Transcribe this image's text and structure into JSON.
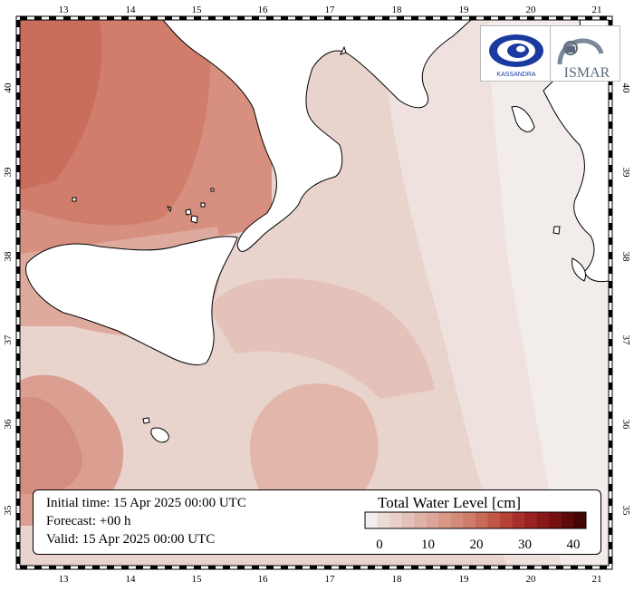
{
  "map": {
    "lon_ticks": [
      "13",
      "14",
      "15",
      "16",
      "17",
      "18",
      "19",
      "20",
      "21"
    ],
    "lat_ticks": [
      "35",
      "36",
      "37",
      "38",
      "39",
      "40"
    ],
    "variable": "Total Water Level [cm]"
  },
  "info": {
    "initial_time": "Initial time: 15 Apr 2025 00:00 UTC",
    "forecast": "Forecast: +00 h",
    "valid": "Valid: 15 Apr 2025 00:00 UTC"
  },
  "legend": {
    "title": "Total Water Level [cm]",
    "tick_labels": [
      "0",
      "10",
      "20",
      "30",
      "40"
    ],
    "colors": [
      "#f2eeed",
      "#ecdcd8",
      "#e8cfc9",
      "#e4c1b9",
      "#e0b3a8",
      "#dca597",
      "#d89787",
      "#d48a78",
      "#d07c6a",
      "#c96a58",
      "#c05747",
      "#b54337",
      "#a8302a",
      "#9b2222",
      "#8a1818",
      "#761010",
      "#5e0a0a",
      "#450505"
    ]
  },
  "logos": {
    "left": "KASSANDRA",
    "right": "ISMAR"
  }
}
